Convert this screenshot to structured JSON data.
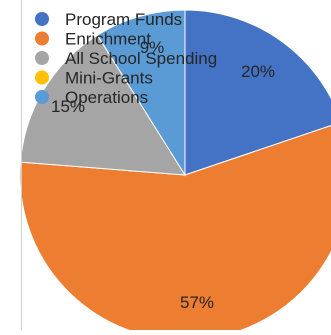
{
  "colors": {
    "program_funds": "#4472C4",
    "enrichment": "#ED7D31",
    "all_school_spending": "#A5A5A5",
    "mini_grants": "#FFC000",
    "operations": "#5B9BD5"
  },
  "chart_data": {
    "type": "pie",
    "title": "",
    "legend_position": "top-left",
    "series": [
      {
        "values": [
          20,
          57,
          15,
          0,
          9
        ],
        "labels": [
          "20%",
          "57%",
          "15%",
          "",
          "9%"
        ]
      }
    ],
    "categories": [
      "Program Funds",
      "Enrichment",
      "All School Spending",
      "Mini-Grants",
      "Operations"
    ]
  }
}
